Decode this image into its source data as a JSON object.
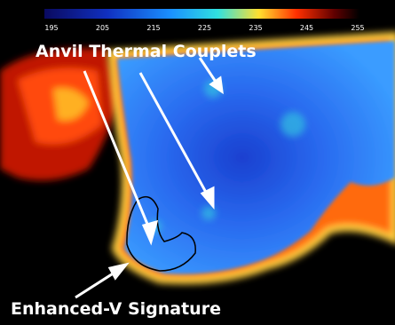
{
  "colorbar": {
    "ticks": [
      "195",
      "205",
      "215",
      "225",
      "235",
      "245",
      "255"
    ]
  },
  "annotations": {
    "top": "Anvil Thermal Couplets",
    "bottom": "Enhanced-V Signature"
  }
}
